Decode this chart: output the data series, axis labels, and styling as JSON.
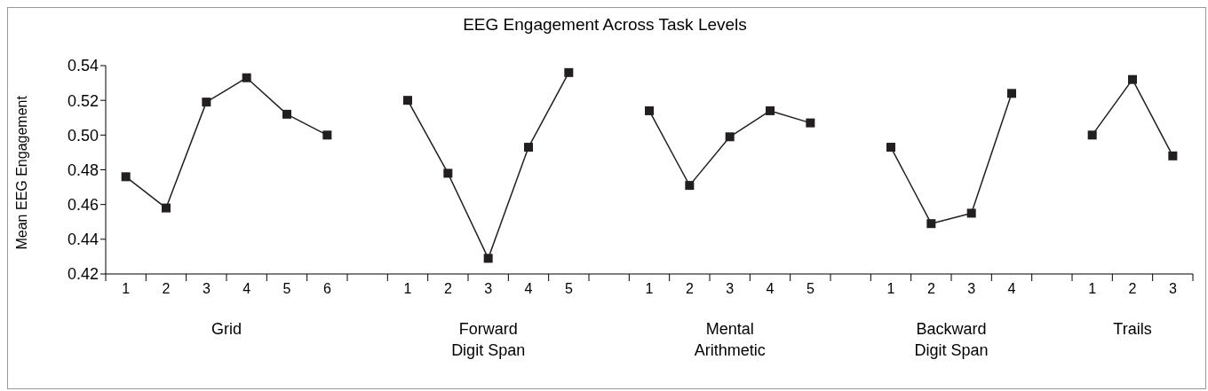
{
  "chart_data": {
    "type": "line",
    "title": "EEG Engagement Across Task Levels",
    "ylabel": "Mean EEG Engagement",
    "categories": [
      "1",
      "2",
      "3",
      "4",
      "5",
      "6",
      null,
      "1",
      "2",
      "3",
      "4",
      "5",
      null,
      "1",
      "2",
      "3",
      "4",
      "5",
      null,
      "1",
      "2",
      "3",
      "4",
      null,
      "1",
      "2",
      "3"
    ],
    "series": [
      {
        "color": "#231f20",
        "values": [
          0.476,
          0.458,
          0.519,
          0.533,
          0.512,
          0.5,
          null,
          0.52,
          0.478,
          0.429,
          0.493,
          0.536,
          null,
          0.514,
          0.471,
          0.499,
          0.514,
          0.507,
          null,
          0.493,
          0.449,
          0.455,
          0.524,
          null,
          0.5,
          0.532,
          0.488
        ]
      }
    ],
    "annotations": [
      "Grid",
      "Forward\nDigit Span",
      "Mental\nArithmetic",
      "Backward\nDigit Span",
      "Trails"
    ],
    "ylim": [
      0.42,
      0.54
    ],
    "yticks": [
      {
        "value": 0.42,
        "label": "0.42"
      },
      {
        "value": 0.44,
        "label": "0.44"
      },
      {
        "value": 0.46,
        "label": "0.46"
      },
      {
        "value": 0.48,
        "label": "0.48"
      },
      {
        "value": 0.5,
        "label": "0.50"
      },
      {
        "value": 0.52,
        "label": "0.52"
      },
      {
        "value": 0.54,
        "label": "0.54"
      }
    ],
    "grid": false,
    "legend": false,
    "marker": "square",
    "line_style": "solid"
  }
}
